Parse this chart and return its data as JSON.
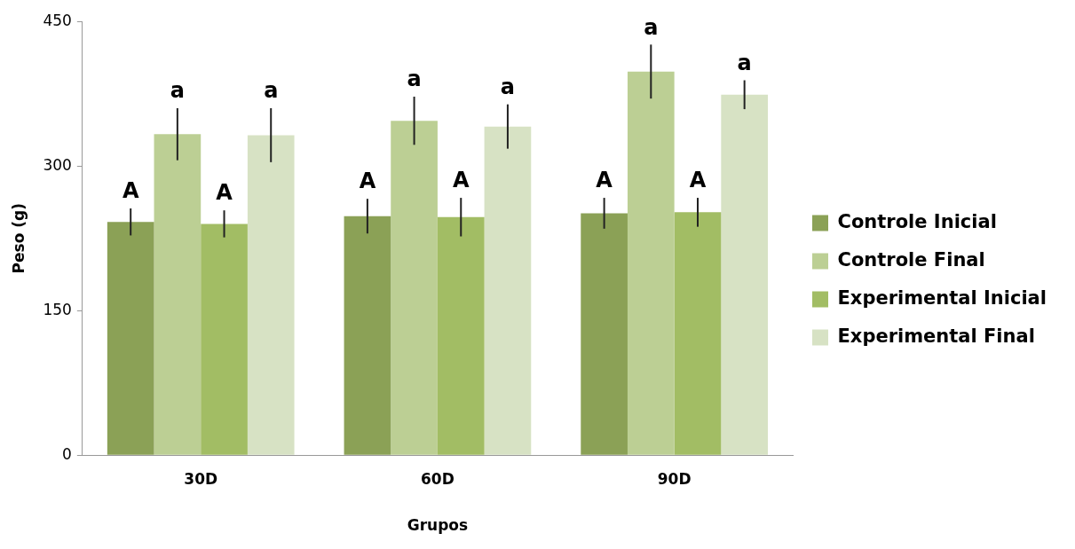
{
  "chart_data": {
    "type": "bar",
    "xlabel": "Grupos",
    "ylabel": "Peso (g)",
    "categories": [
      "30D",
      "60D",
      "90D"
    ],
    "series": [
      {
        "name": "Controle Inicial",
        "color": "#8ba156",
        "values": [
          242,
          248,
          251
        ],
        "errors": [
          14,
          18,
          16
        ]
      },
      {
        "name": "Controle Final",
        "color": "#bccf94",
        "values": [
          333,
          347,
          398
        ],
        "errors": [
          27,
          25,
          28
        ]
      },
      {
        "name": "Experimental Inicial",
        "color": "#a2bd64",
        "values": [
          240,
          247,
          252
        ],
        "errors": [
          14,
          20,
          15
        ]
      },
      {
        "name": "Experimental Final",
        "color": "#d7e2c4",
        "values": [
          332,
          341,
          374
        ],
        "errors": [
          28,
          23,
          15
        ]
      }
    ],
    "ylim": [
      0,
      450
    ],
    "yticks": [
      0,
      150,
      300,
      450
    ],
    "grid": false,
    "legend": "right",
    "annotations": [
      "A",
      "a",
      "A",
      "a",
      "A",
      "a",
      "A",
      "a",
      "A",
      "a",
      "A",
      "a"
    ]
  }
}
